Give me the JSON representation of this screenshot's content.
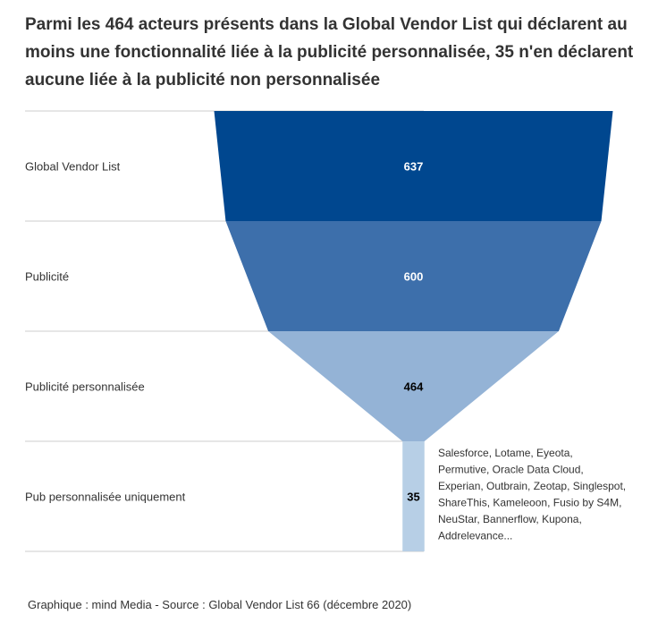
{
  "title": "Parmi les 464 acteurs présents dans la Global Vendor List qui déclarent au moins une fonctionnalité liée à la publicité personnalisée, 35 n'en déclarent aucune liée à la publicité non personnalisée",
  "footer": "Graphique : mind Media - Source : Global Vendor List 66 (décembre 2020)",
  "chart_data": {
    "type": "funnel",
    "categories": [
      "Global Vendor List",
      "Publicité",
      "Publicité personnalisée",
      "Pub personnalisée uniquement"
    ],
    "values": [
      637,
      600,
      464,
      35
    ],
    "colors": [
      "#00478f",
      "#3d6fab",
      "#94b3d6",
      "#b7cfe6"
    ],
    "label_colors": [
      "#ffffff",
      "#ffffff",
      "#000000",
      "#000000"
    ],
    "annotation": [
      "Salesforce, Lotame, Eyeota,",
      "Permutive, Oracle Data Cloud,",
      "Experian, Outbrain, Zeotap, Singlespot,",
      "ShareThis, Kameleoon, Fusio by S4M,",
      "NeuStar, Bannerflow, Kupona,",
      "Addrelevance..."
    ]
  }
}
